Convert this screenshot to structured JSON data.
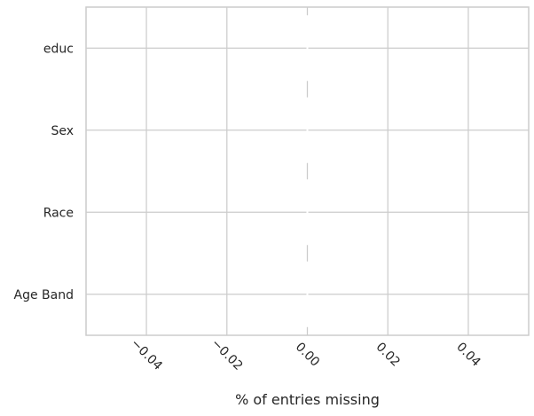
{
  "chart_data": {
    "type": "bar",
    "orientation": "horizontal",
    "categories": [
      "educ",
      "Sex",
      "Race",
      "Age Band"
    ],
    "values": [
      0,
      0,
      0,
      0
    ],
    "xlabel": "% of entries missing",
    "ylabel": "",
    "xlim": [
      -0.055,
      0.055
    ],
    "xticks": [
      -0.04,
      -0.02,
      0.0,
      0.02,
      0.04
    ],
    "xtick_labels": [
      "−0.04",
      "−0.02",
      "0.00",
      "0.02",
      "0.04"
    ],
    "xtick_rotation": -45,
    "grid": true,
    "legend": "none",
    "colors": {
      "grid": "#cccccc",
      "spine": "#cccccc",
      "text": "#262626",
      "bar": "#ffffff"
    }
  }
}
